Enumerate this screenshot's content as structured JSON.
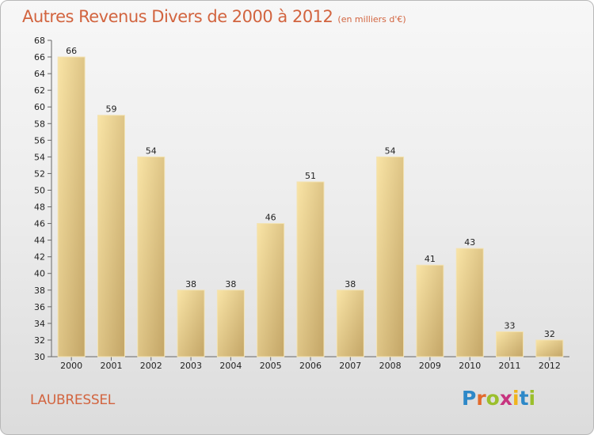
{
  "title": "Autres Revenus Divers de 2000 à 2012",
  "unit": "(en milliers d'€)",
  "commune": "LAUBRESSEL",
  "logo": [
    "P",
    "r",
    "o",
    "x",
    "i",
    "t",
    "i"
  ],
  "colors": {
    "title": "#d2643f",
    "bar_light": "#f6dc96",
    "bar_dark": "#c4a666",
    "axis": "#666666"
  },
  "chart_data": {
    "type": "bar",
    "title": "Autres Revenus Divers de 2000 à 2012",
    "categories": [
      "2000",
      "2001",
      "2002",
      "2003",
      "2004",
      "2005",
      "2006",
      "2007",
      "2008",
      "2009",
      "2010",
      "2011",
      "2012"
    ],
    "values": [
      66,
      59,
      54,
      38,
      38,
      46,
      51,
      38,
      54,
      41,
      43,
      33,
      32
    ],
    "ylim": [
      30,
      68
    ],
    "yticks": [
      30,
      32,
      34,
      36,
      38,
      40,
      42,
      44,
      46,
      48,
      50,
      52,
      54,
      56,
      58,
      60,
      62,
      64,
      66,
      68
    ],
    "grid": false,
    "legend": "none"
  }
}
